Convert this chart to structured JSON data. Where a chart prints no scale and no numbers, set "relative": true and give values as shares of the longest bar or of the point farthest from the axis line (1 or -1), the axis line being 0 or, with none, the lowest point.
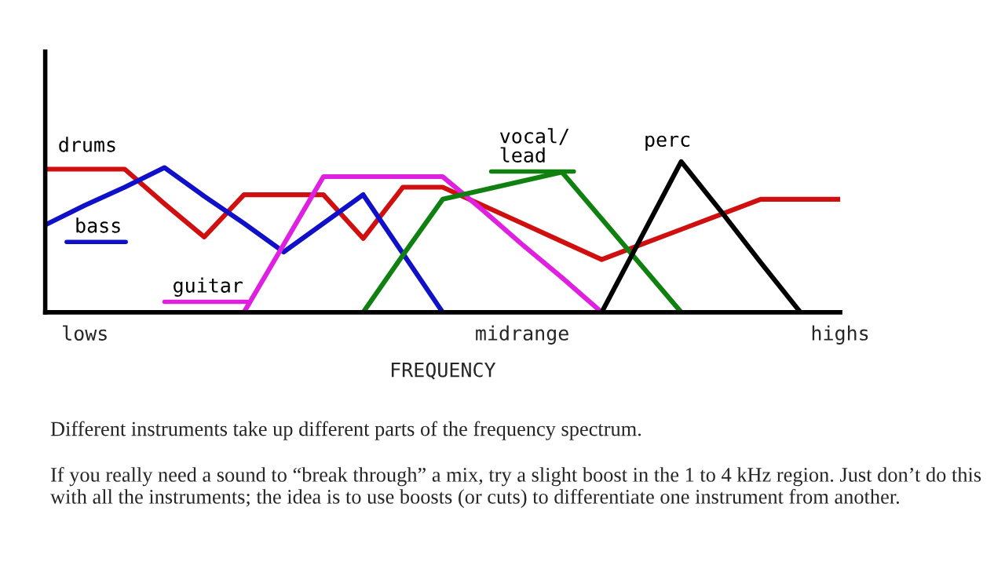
{
  "chart_data": {
    "type": "line",
    "relative": true,
    "xlabel": "FREQUENCY",
    "categories": [
      null,
      "lows",
      null,
      null,
      null,
      null,
      null,
      null,
      null,
      null,
      null,
      null,
      "midrange",
      null,
      null,
      null,
      null,
      null,
      null,
      null,
      "highs"
    ],
    "grid": false,
    "legend": false,
    "marker": "none",
    "line_style": "solid",
    "series": [
      {
        "name": "drums",
        "color": "#d01010",
        "values": [
          0.95,
          0.95,
          0.95,
          0.72,
          0.5,
          0.78,
          0.78,
          0.78,
          0.49,
          0.83,
          0.83,
          0.71,
          0.59,
          0.47,
          0.35,
          0.45,
          0.55,
          0.65,
          0.75,
          0.75,
          0.75
        ]
      },
      {
        "name": "bass",
        "color": "#1010c8",
        "values": [
          0.58,
          0.71,
          0.83,
          0.96,
          0.77,
          0.59,
          0.4,
          0.59,
          0.78,
          0.39,
          0,
          null,
          null,
          null,
          null,
          null,
          null,
          null,
          null,
          null,
          null
        ]
      },
      {
        "name": "guitar",
        "color": "#e020e0",
        "values": [
          null,
          null,
          null,
          null,
          null,
          0,
          0.45,
          0.9,
          0.9,
          0.9,
          0.9,
          0.68,
          0.45,
          0.23,
          0,
          null,
          null,
          null,
          null,
          null,
          null
        ]
      },
      {
        "name": "vocal/\nlead",
        "color": "#108010",
        "values": [
          null,
          null,
          null,
          null,
          null,
          null,
          null,
          null,
          0,
          0.38,
          0.75,
          0.81,
          0.87,
          0.93,
          0.62,
          0.31,
          0,
          null,
          null,
          null,
          null
        ]
      },
      {
        "name": "perc",
        "color": "#000000",
        "values": [
          null,
          null,
          null,
          null,
          null,
          null,
          null,
          null,
          null,
          null,
          null,
          null,
          null,
          null,
          0,
          0.5,
          1.0,
          0.67,
          0.33,
          0,
          null
        ]
      }
    ],
    "annotations": [
      "Different instruments take up different parts of the frequency spectrum.",
      "If you really need a sound to “break through” a mix, try a slight boost in the 1 to 4 kHz region. Just don’t do this with all the instruments; the idea is to use boosts (or cuts) to differentiate one instrument from another."
    ]
  }
}
